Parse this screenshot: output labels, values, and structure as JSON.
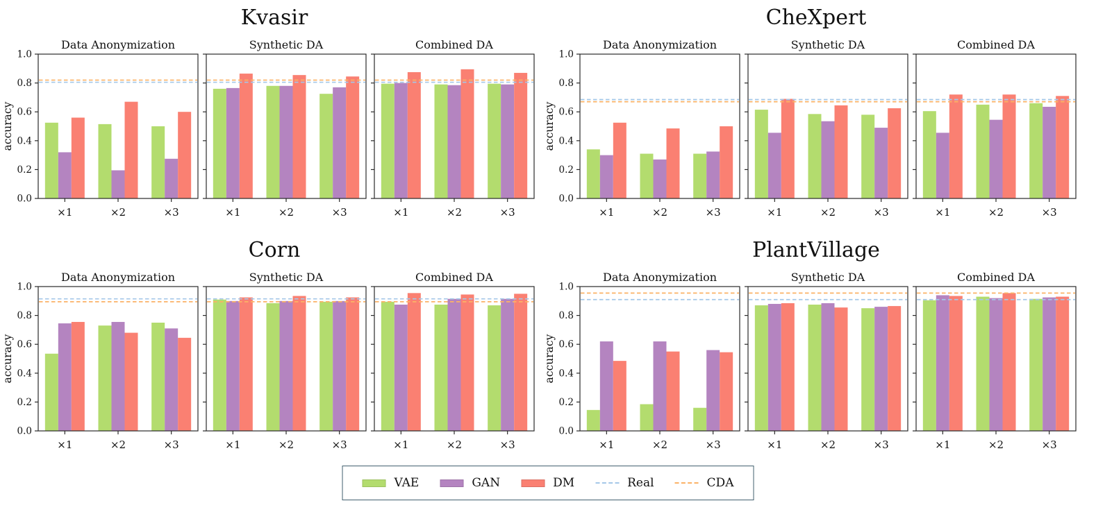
{
  "figure_title": "",
  "chart_data": {
    "type": "bar",
    "categories": [
      "×1",
      "×2",
      "×3"
    ],
    "series_names": [
      "VAE",
      "GAN",
      "DM"
    ],
    "ylabel": "accuracy",
    "ylim": [
      0.0,
      1.0
    ],
    "yticks": [
      0.0,
      0.2,
      0.4,
      0.6,
      0.8,
      1.0
    ],
    "ytick_labels": [
      "0.0",
      "0.2",
      "0.4",
      "0.6",
      "0.8",
      "1.0"
    ],
    "grid": false,
    "legend_position": "bottom-center",
    "colors": {
      "VAE": "#b3dc6e",
      "GAN": "#b484c0",
      "DM": "#fa8072",
      "Real": "#a4c7e8",
      "CDA": "#fbb266",
      "spine": "#2a2a2a",
      "legend_border": "#41606e"
    },
    "groups": [
      {
        "title": "Kvasir",
        "real": 0.805,
        "cda": 0.82,
        "panels": [
          {
            "title": "Data Anonymization",
            "series": [
              {
                "name": "VAE",
                "values": [
                  0.525,
                  0.515,
                  0.5
                ]
              },
              {
                "name": "GAN",
                "values": [
                  0.32,
                  0.195,
                  0.275
                ]
              },
              {
                "name": "DM",
                "values": [
                  0.56,
                  0.67,
                  0.6
                ]
              }
            ]
          },
          {
            "title": "Synthetic DA",
            "series": [
              {
                "name": "VAE",
                "values": [
                  0.76,
                  0.78,
                  0.725
                ]
              },
              {
                "name": "GAN",
                "values": [
                  0.765,
                  0.78,
                  0.77
                ]
              },
              {
                "name": "DM",
                "values": [
                  0.865,
                  0.855,
                  0.845
                ]
              }
            ]
          },
          {
            "title": "Combined DA",
            "series": [
              {
                "name": "VAE",
                "values": [
                  0.795,
                  0.79,
                  0.795
                ]
              },
              {
                "name": "GAN",
                "values": [
                  0.8,
                  0.785,
                  0.79
                ]
              },
              {
                "name": "DM",
                "values": [
                  0.875,
                  0.895,
                  0.87
                ]
              }
            ]
          }
        ]
      },
      {
        "title": "CheXpert",
        "real": 0.685,
        "cda": 0.67,
        "panels": [
          {
            "title": "Data Anonymization",
            "series": [
              {
                "name": "VAE",
                "values": [
                  0.34,
                  0.31,
                  0.31
                ]
              },
              {
                "name": "GAN",
                "values": [
                  0.3,
                  0.27,
                  0.325
                ]
              },
              {
                "name": "DM",
                "values": [
                  0.525,
                  0.485,
                  0.5
                ]
              }
            ]
          },
          {
            "title": "Synthetic DA",
            "series": [
              {
                "name": "VAE",
                "values": [
                  0.615,
                  0.585,
                  0.58
                ]
              },
              {
                "name": "GAN",
                "values": [
                  0.455,
                  0.535,
                  0.49
                ]
              },
              {
                "name": "DM",
                "values": [
                  0.69,
                  0.645,
                  0.625
                ]
              }
            ]
          },
          {
            "title": "Combined DA",
            "series": [
              {
                "name": "VAE",
                "values": [
                  0.605,
                  0.65,
                  0.66
                ]
              },
              {
                "name": "GAN",
                "values": [
                  0.455,
                  0.545,
                  0.635
                ]
              },
              {
                "name": "DM",
                "values": [
                  0.72,
                  0.72,
                  0.71
                ]
              }
            ]
          }
        ]
      },
      {
        "title": "Corn",
        "real": 0.915,
        "cda": 0.895,
        "panels": [
          {
            "title": "Data Anonymization",
            "series": [
              {
                "name": "VAE",
                "values": [
                  0.535,
                  0.73,
                  0.75
                ]
              },
              {
                "name": "GAN",
                "values": [
                  0.745,
                  0.755,
                  0.71
                ]
              },
              {
                "name": "DM",
                "values": [
                  0.755,
                  0.68,
                  0.645
                ]
              }
            ]
          },
          {
            "title": "Synthetic DA",
            "series": [
              {
                "name": "VAE",
                "values": [
                  0.91,
                  0.885,
                  0.895
                ]
              },
              {
                "name": "GAN",
                "values": [
                  0.9,
                  0.9,
                  0.9
                ]
              },
              {
                "name": "DM",
                "values": [
                  0.925,
                  0.935,
                  0.925
                ]
              }
            ]
          },
          {
            "title": "Combined DA",
            "series": [
              {
                "name": "VAE",
                "values": [
                  0.895,
                  0.875,
                  0.87
                ]
              },
              {
                "name": "GAN",
                "values": [
                  0.875,
                  0.915,
                  0.915
                ]
              },
              {
                "name": "DM",
                "values": [
                  0.955,
                  0.945,
                  0.95
                ]
              }
            ]
          }
        ]
      },
      {
        "title": "PlantVillage",
        "real": 0.91,
        "cda": 0.955,
        "panels": [
          {
            "title": "Data Anonymization",
            "series": [
              {
                "name": "VAE",
                "values": [
                  0.145,
                  0.185,
                  0.16
                ]
              },
              {
                "name": "GAN",
                "values": [
                  0.62,
                  0.62,
                  0.56
                ]
              },
              {
                "name": "DM",
                "values": [
                  0.485,
                  0.55,
                  0.545
                ]
              }
            ]
          },
          {
            "title": "Synthetic DA",
            "series": [
              {
                "name": "VAE",
                "values": [
                  0.87,
                  0.875,
                  0.85
                ]
              },
              {
                "name": "GAN",
                "values": [
                  0.88,
                  0.885,
                  0.86
                ]
              },
              {
                "name": "DM",
                "values": [
                  0.885,
                  0.855,
                  0.865
                ]
              }
            ]
          },
          {
            "title": "Combined DA",
            "series": [
              {
                "name": "VAE",
                "values": [
                  0.905,
                  0.93,
                  0.915
                ]
              },
              {
                "name": "GAN",
                "values": [
                  0.94,
                  0.92,
                  0.925
                ]
              },
              {
                "name": "DM",
                "values": [
                  0.935,
                  0.955,
                  0.93
                ]
              }
            ]
          }
        ]
      }
    ],
    "legend": {
      "items": [
        {
          "label": "VAE",
          "type": "patch",
          "color_key": "VAE"
        },
        {
          "label": "GAN",
          "type": "patch",
          "color_key": "GAN"
        },
        {
          "label": "DM",
          "type": "patch",
          "color_key": "DM"
        },
        {
          "label": "Real",
          "type": "dash",
          "color_key": "Real"
        },
        {
          "label": "CDA",
          "type": "dash",
          "color_key": "CDA"
        }
      ]
    }
  }
}
